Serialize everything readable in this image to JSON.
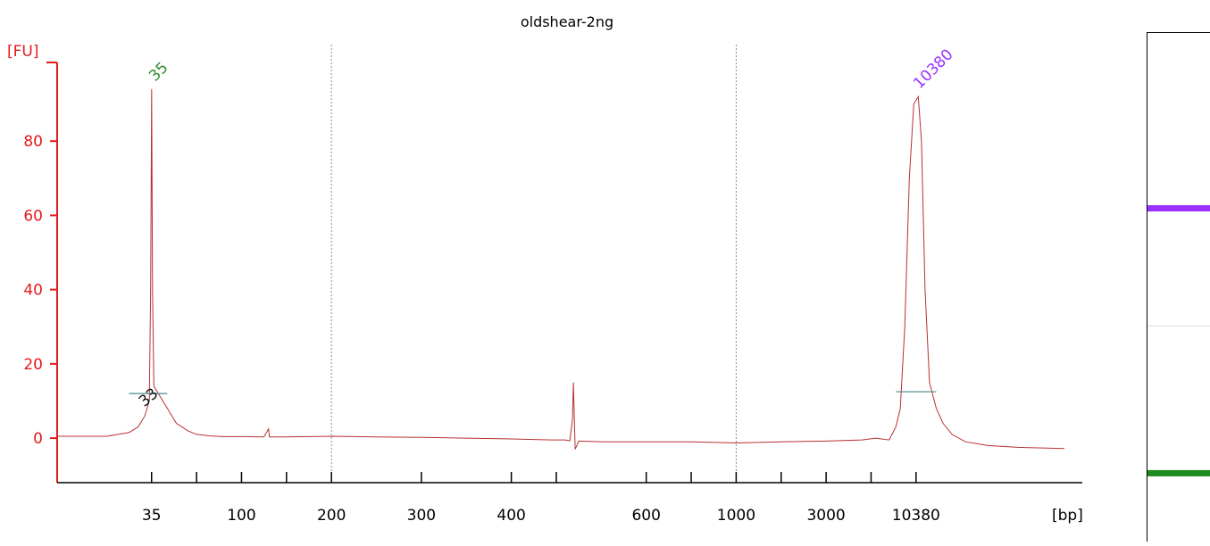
{
  "chart_data": {
    "type": "line",
    "title": "oldshear-2ng",
    "ylabel": "[FU]",
    "xlabel": "[bp]",
    "ylim": [
      -12,
      106
    ],
    "yticks": [
      0,
      20,
      40,
      60,
      80
    ],
    "xtick_labels": [
      {
        "label": "35",
        "pos": 1
      },
      {
        "label": "100",
        "pos": 3
      },
      {
        "label": "200",
        "pos": 5
      },
      {
        "label": "300",
        "pos": 7
      },
      {
        "label": "400",
        "pos": 9
      },
      {
        "label": "600",
        "pos": 12
      },
      {
        "label": "1000",
        "pos": 14
      },
      {
        "label": "3000",
        "pos": 16
      },
      {
        "label": "10380",
        "pos": 18
      }
    ],
    "xtick_marks": [
      1,
      2,
      3,
      4,
      5,
      7,
      9,
      10,
      12,
      13,
      14,
      15,
      16,
      17,
      18
    ],
    "xlim": [
      -1.1,
      21.3
    ],
    "gridlines_x": [
      5,
      14
    ],
    "series": [
      {
        "color": "#b83030",
        "points": [
          [
            -1.1,
            0.5
          ],
          [
            -0.5,
            0.5
          ],
          [
            0,
            0.5
          ],
          [
            0.5,
            1.5
          ],
          [
            0.7,
            3
          ],
          [
            0.85,
            6
          ],
          [
            0.95,
            10
          ],
          [
            0.98,
            40
          ],
          [
            1.0,
            94
          ],
          [
            1.02,
            40
          ],
          [
            1.05,
            14
          ],
          [
            1.15,
            12
          ],
          [
            1.35,
            8
          ],
          [
            1.55,
            4
          ],
          [
            1.8,
            2
          ],
          [
            2.0,
            1
          ],
          [
            2.3,
            0.6
          ],
          [
            2.6,
            0.4
          ],
          [
            3.0,
            0.4
          ],
          [
            3.5,
            0.3
          ],
          [
            3.6,
            2.5
          ],
          [
            3.62,
            0.3
          ],
          [
            4,
            0.3
          ],
          [
            5,
            0.5
          ],
          [
            6,
            0.3
          ],
          [
            7,
            0.2
          ],
          [
            8,
            0
          ],
          [
            8.9,
            -0.2
          ],
          [
            9.9,
            -0.5
          ],
          [
            10.2,
            -0.5
          ],
          [
            10.3,
            -0.7
          ],
          [
            10.36,
            5
          ],
          [
            10.38,
            15
          ],
          [
            10.42,
            -3
          ],
          [
            10.5,
            -0.8
          ],
          [
            11,
            -1
          ],
          [
            12,
            -1
          ],
          [
            13,
            -1
          ],
          [
            14,
            -1.3
          ],
          [
            15,
            -1
          ],
          [
            16,
            -0.8
          ],
          [
            16.8,
            -0.5
          ],
          [
            17.1,
            0
          ],
          [
            17.4,
            -0.5
          ],
          [
            17.55,
            3
          ],
          [
            17.65,
            8
          ],
          [
            17.75,
            30
          ],
          [
            17.85,
            70
          ],
          [
            17.95,
            90
          ],
          [
            18.05,
            92
          ],
          [
            18.12,
            80
          ],
          [
            18.2,
            40
          ],
          [
            18.3,
            15
          ],
          [
            18.45,
            8
          ],
          [
            18.6,
            4
          ],
          [
            18.8,
            1
          ],
          [
            19.1,
            -1
          ],
          [
            19.6,
            -2
          ],
          [
            20.3,
            -2.5
          ],
          [
            21.3,
            -2.8
          ]
        ]
      }
    ],
    "peaks": [
      {
        "label": "35",
        "x": 1.0,
        "y": 94,
        "color": "#2e8b2e"
      },
      {
        "label": "10380",
        "x": 18.0,
        "y": 92,
        "color": "#9b30ff"
      }
    ],
    "regions": [
      {
        "label": "33",
        "x1": 0.5,
        "x2": 1.35,
        "y": 12,
        "color": "#111111",
        "line_color": "#4a8a8a"
      },
      {
        "label": "",
        "x1": 17.55,
        "x2": 18.45,
        "y": 12.5,
        "color": "#111111",
        "line_color": "#4a8a8a"
      }
    ],
    "colors": {
      "axis": "#e31a1c",
      "trace": "#b83030",
      "marker_35": "#2e8b2e",
      "marker_10380": "#9b30ff",
      "tick_label": "#000000"
    }
  },
  "gel": {
    "bands": [
      {
        "color": "#9b30ff",
        "pos": 0.345
      },
      {
        "color": "#1f8a1f",
        "pos": 0.865
      }
    ],
    "separator_pos": 0.575
  }
}
